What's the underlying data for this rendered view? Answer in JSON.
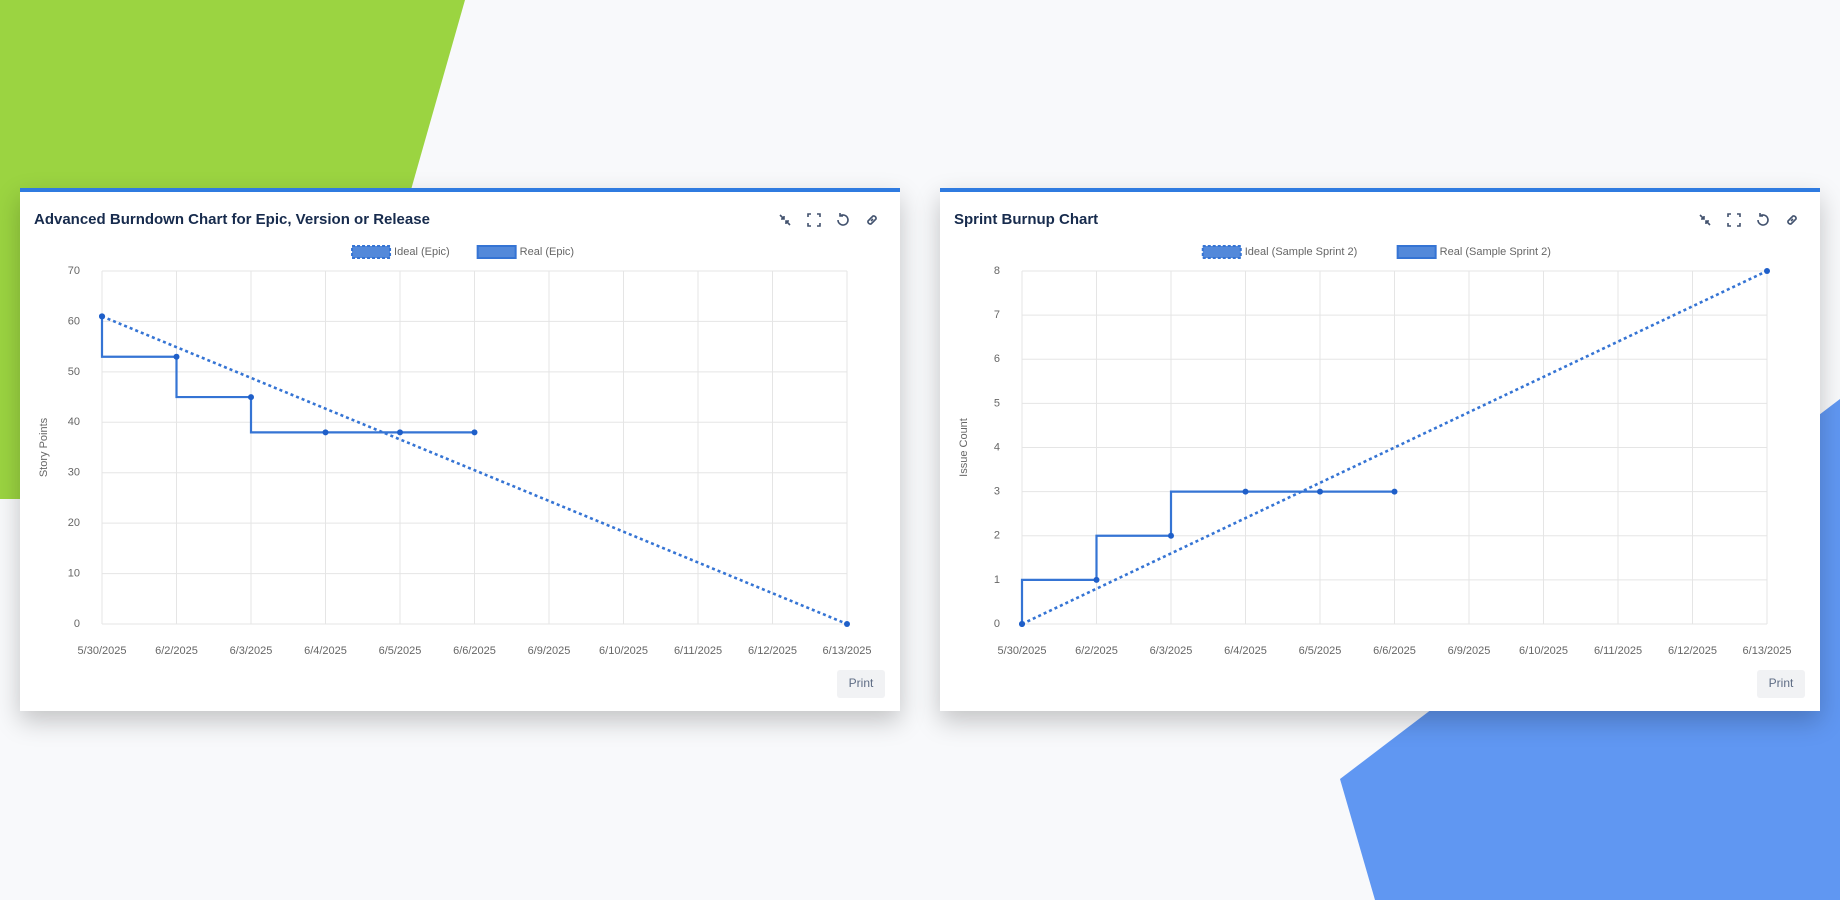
{
  "chart_data": [
    {
      "type": "line",
      "title": "Advanced Burndown Chart for Epic, Version or Release",
      "ylabel": "Story Points",
      "categories": [
        "5/30/2025",
        "6/2/2025",
        "6/3/2025",
        "6/4/2025",
        "6/5/2025",
        "6/6/2025",
        "6/9/2025",
        "6/10/2025",
        "6/11/2025",
        "6/12/2025",
        "6/13/2025"
      ],
      "series": [
        {
          "name": "Ideal (Epic)",
          "color": "#3574d4",
          "dashed": true,
          "values": [
            61,
            54.9,
            48.8,
            42.7,
            36.6,
            30.5,
            24.4,
            18.3,
            12.2,
            6.1,
            0
          ]
        },
        {
          "name": "Real (Epic)",
          "color": "#3574d4",
          "stepped": true,
          "values": [
            61,
            53,
            45,
            38,
            38,
            38,
            null,
            null,
            null,
            null,
            null
          ]
        }
      ],
      "ylim": [
        0,
        70
      ],
      "yticks": [
        0,
        10,
        20,
        30,
        40,
        50,
        60,
        70
      ],
      "grid": true,
      "legend": "top",
      "button": "Print"
    },
    {
      "type": "line",
      "title": "Sprint Burnup Chart",
      "ylabel": "Issue Count",
      "categories": [
        "5/30/2025",
        "6/2/2025",
        "6/3/2025",
        "6/4/2025",
        "6/5/2025",
        "6/6/2025",
        "6/9/2025",
        "6/10/2025",
        "6/11/2025",
        "6/12/2025",
        "6/13/2025"
      ],
      "series": [
        {
          "name": "Ideal (Sample Sprint 2)",
          "color": "#3574d4",
          "dashed": true,
          "values": [
            0,
            0.8,
            1.6,
            2.4,
            3.2,
            4,
            4.8,
            5.6,
            6.4,
            7.2,
            8
          ]
        },
        {
          "name": "Real (Sample Sprint 2)",
          "color": "#3574d4",
          "stepped": true,
          "values": [
            0,
            1,
            2,
            3,
            3,
            3,
            null,
            null,
            null,
            null,
            null
          ]
        }
      ],
      "ylim": [
        0,
        8
      ],
      "yticks": [
        0,
        1,
        2,
        3,
        4,
        5,
        6,
        7,
        8
      ],
      "grid": true,
      "legend": "top",
      "button": "Print"
    }
  ]
}
